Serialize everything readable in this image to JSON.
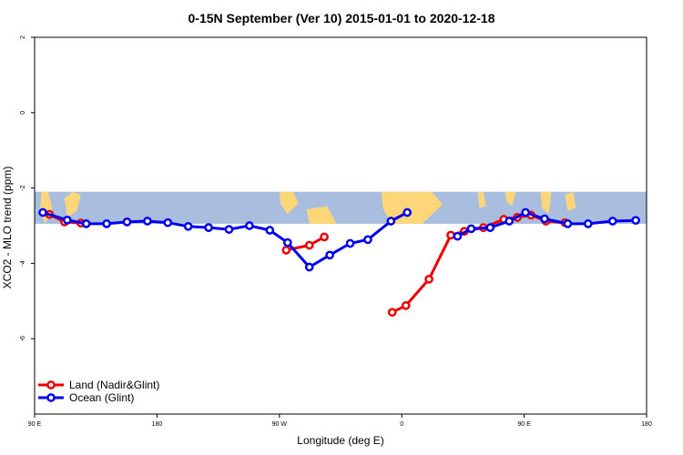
{
  "chart_data": {
    "type": "line",
    "title": "0-15N September (Ver 10)   2015-01-01 to 2020-12-18",
    "xlabel": "Longitude (deg E)",
    "ylabel": "XCO2 - MLO trend (ppm)",
    "xlim": [
      90,
      540
    ],
    "ylim": [
      -8,
      2
    ],
    "x_ticks": [
      {
        "value": 90,
        "label": "90 E"
      },
      {
        "value": 180,
        "label": "180"
      },
      {
        "value": 270,
        "label": "90 W"
      },
      {
        "value": 360,
        "label": "0"
      },
      {
        "value": 450,
        "label": "90 E"
      },
      {
        "value": 540,
        "label": "180"
      }
    ],
    "y_ticks": [
      {
        "value": 2,
        "label": "2"
      },
      {
        "value": 0,
        "label": "0"
      },
      {
        "value": -2,
        "label": "-2"
      },
      {
        "value": -4,
        "label": "-4"
      },
      {
        "value": -6,
        "label": "-6"
      }
    ],
    "map_band": {
      "y_top": -2.1,
      "y_bottom": -2.95,
      "ocean_color": "#a9bedf",
      "land_color": "#fdd67a"
    },
    "series": [
      {
        "name": "Land (Nadir&Glint)",
        "color": "#ee0000",
        "segments": [
          {
            "x": [
              101,
              112,
              124
            ],
            "y": [
              -2.7,
              -2.9,
              -2.93
            ]
          },
          {
            "x": [
              275,
              292,
              303
            ],
            "y": [
              -3.65,
              -3.52,
              -3.3
            ]
          },
          {
            "x": [
              353,
              363,
              380,
              396,
              406,
              420,
              435,
              445,
              455,
              466,
              480
            ],
            "y": [
              -5.3,
              -5.12,
              -4.42,
              -3.25,
              -3.15,
              -3.05,
              -2.83,
              -2.78,
              -2.72,
              -2.88,
              -2.92
            ]
          }
        ]
      },
      {
        "name": "Ocean (Glint)",
        "color": "#0000ee",
        "segments": [
          {
            "x": [
              96,
              114,
              128,
              143,
              158,
              173,
              188,
              203,
              218,
              233,
              248,
              263,
              276,
              292,
              307,
              322,
              335,
              352,
              364
            ],
            "y": [
              -2.65,
              -2.85,
              -2.95,
              -2.95,
              -2.9,
              -2.88,
              -2.92,
              -3.02,
              -3.05,
              -3.1,
              -3.0,
              -3.12,
              -3.45,
              -4.1,
              -3.78,
              -3.47,
              -3.37,
              -2.88,
              -2.65
            ]
          },
          {
            "x": [
              401,
              411,
              425,
              439,
              451,
              465,
              482,
              497,
              515,
              532
            ],
            "y": [
              -3.28,
              -3.08,
              -3.05,
              -2.88,
              -2.65,
              -2.82,
              -2.95,
              -2.95,
              -2.88,
              -2.86
            ]
          }
        ]
      }
    ],
    "legend": {
      "position": "bottom-left"
    }
  }
}
